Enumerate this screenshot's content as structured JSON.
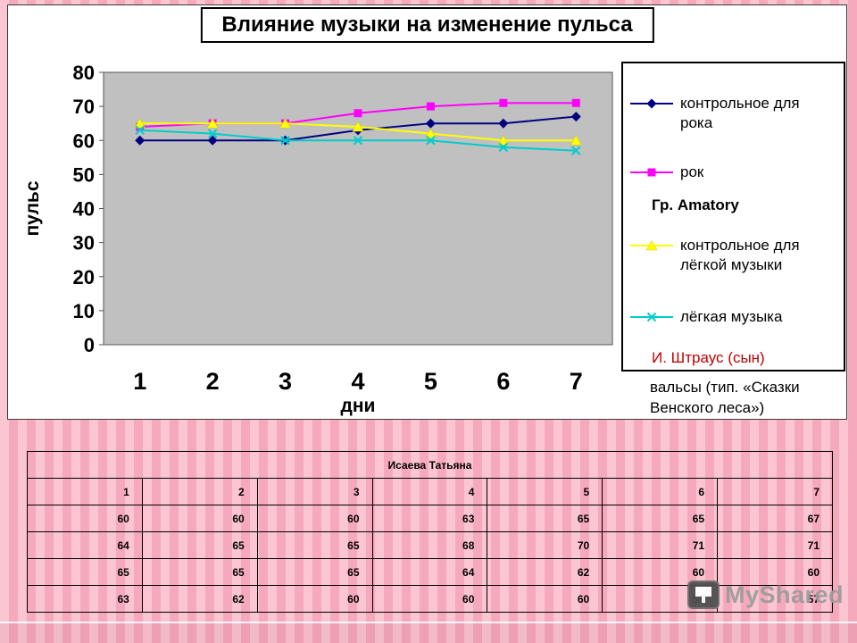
{
  "slide": {
    "title": "Влияние музыки на изменение пульса"
  },
  "chart_data": {
    "type": "line",
    "title": "Влияние музыки на изменение пульса",
    "xlabel": "дни",
    "ylabel": "пульс",
    "categories": [
      "1",
      "2",
      "3",
      "4",
      "5",
      "6",
      "7"
    ],
    "ylim": [
      0,
      80
    ],
    "ytick_step": 10,
    "grid": false,
    "legend_position": "right",
    "plot_area_color": "#c0c0c0",
    "series": [
      {
        "name": "контрольное для рока",
        "marker": "diamond",
        "color": "#000080",
        "values": [
          60,
          60,
          60,
          63,
          65,
          65,
          67
        ]
      },
      {
        "name": "рок",
        "marker": "square",
        "color": "#ff00ff",
        "values": [
          64,
          65,
          65,
          68,
          70,
          71,
          71
        ]
      },
      {
        "name": "контрольное для лёгкой музыки",
        "marker": "triangle",
        "color": "#ffff00",
        "values": [
          65,
          65,
          65,
          64,
          62,
          60,
          60
        ]
      },
      {
        "name": "лёгкая музыка",
        "marker": "x",
        "color": "#00cccc",
        "values": [
          63,
          62,
          60,
          60,
          60,
          58,
          57
        ]
      }
    ],
    "annotations": [
      {
        "text": "Гр. Amatory",
        "color": "#000000"
      },
      {
        "text": "И. Штраус (сын)",
        "color": "#c00000"
      },
      {
        "text": "вальсы (тип. «Сказки Венского леса»)",
        "color": "#000000"
      }
    ]
  },
  "table": {
    "header": "Исаева Татьяна",
    "rows": [
      [
        "1",
        "2",
        "3",
        "4",
        "5",
        "6",
        "7"
      ],
      [
        "60",
        "60",
        "60",
        "63",
        "65",
        "65",
        "67"
      ],
      [
        "64",
        "65",
        "65",
        "68",
        "70",
        "71",
        "71"
      ],
      [
        "65",
        "65",
        "65",
        "64",
        "62",
        "60",
        "60"
      ],
      [
        "63",
        "62",
        "60",
        "60",
        "60",
        "58",
        "57"
      ]
    ]
  },
  "watermark": {
    "text": "MyShared"
  }
}
